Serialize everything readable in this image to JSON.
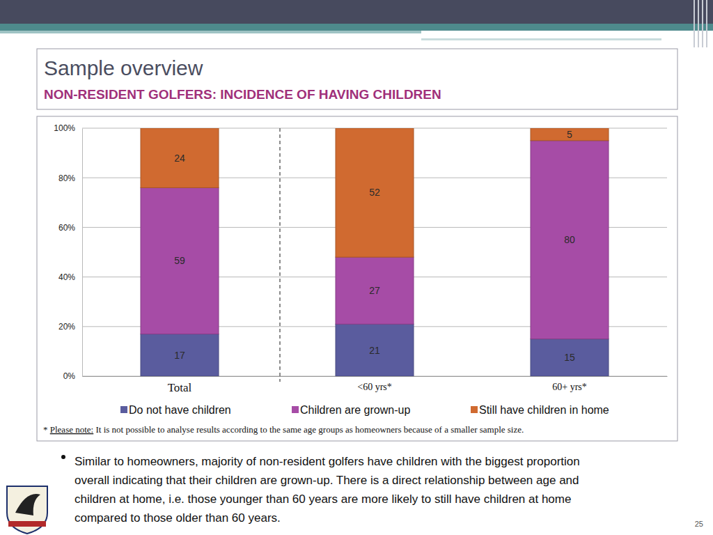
{
  "chart_data": {
    "type": "bar",
    "stacked": true,
    "data_labels": true,
    "grid": true,
    "legend": "bottom",
    "title": "Sample overview",
    "subtitle": "NON-RESIDENT GOLFERS: INCIDENCE OF HAVING CHILDREN",
    "categories": [
      "Total",
      "<60 yrs*",
      "60+ yrs*"
    ],
    "series": [
      {
        "name": "Do not have children",
        "color": "#5a5c9e",
        "values": [
          17,
          21,
          15
        ]
      },
      {
        "name": "Children are grown-up",
        "color": "#a64ca6",
        "values": [
          59,
          27,
          80
        ]
      },
      {
        "name": "Still have children in home",
        "color": "#d06a30",
        "values": [
          24,
          52,
          5
        ]
      }
    ],
    "ylim": [
      0,
      100
    ],
    "yticks": [
      {
        "value": 0,
        "label": "0%"
      },
      {
        "value": 20,
        "label": "20%"
      },
      {
        "value": 40,
        "label": "40%"
      },
      {
        "value": 60,
        "label": "60%"
      },
      {
        "value": 80,
        "label": "80%"
      },
      {
        "value": 100,
        "label": "100%"
      }
    ],
    "footnote": {
      "marker": "*",
      "label": "Please note:",
      "text": "It is not possible to analyse results according to the same age groups as homeowners because of a smaller sample size."
    }
  },
  "slide": {
    "bullet_lines": [
      "Similar to homeowners, majority of non-resident golfers have children with the biggest proportion",
      "overall indicating that their children are grown-up. There is a direct relationship between age and",
      "children at home, i.e. those younger than 60 years are more likely to still have children at home",
      "compared to those older than 60 years."
    ],
    "page_number": 25
  }
}
